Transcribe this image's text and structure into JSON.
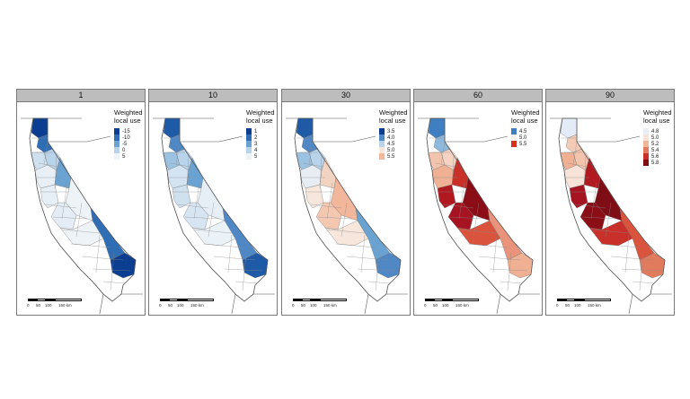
{
  "figure": {
    "panels": [
      {
        "label": "1",
        "legend": {
          "title": "Weighted local use",
          "ticks": [
            "-15",
            "-10",
            "-5",
            "0",
            "5"
          ],
          "colors": [
            "#0b3d91",
            "#2f6db5",
            "#6aa3d1",
            "#b9d3ea",
            "#eef3f8"
          ]
        },
        "zone_colors": [
          "#0b3d91",
          "#2f6db5",
          "#cfe0ef",
          "#b9d3ea",
          "#e8eff6",
          "#6aa3d1",
          "#e6eef6",
          "#eef3f8",
          "#e4ecf5",
          "#eef3f8",
          "#2f6db5",
          "#0b3d91"
        ]
      },
      {
        "label": "10",
        "legend": {
          "title": "Weighted local use",
          "ticks": [
            "1",
            "2",
            "3",
            "4",
            "5"
          ],
          "colors": [
            "#0b3d91",
            "#2f6db5",
            "#6aa3d1",
            "#b9d3ea",
            "#eef3f8"
          ]
        },
        "zone_colors": [
          "#1f5aa6",
          "#4f88c4",
          "#9cc2e2",
          "#b9d3ea",
          "#d4e3f1",
          "#6aa3d1",
          "#cfe0ef",
          "#e6eef6",
          "#d7e5f2",
          "#eaf1f7",
          "#4f88c4",
          "#1f5aa6"
        ]
      },
      {
        "label": "30",
        "legend": {
          "title": "Weighted local use",
          "ticks": [
            "3.5",
            "4.0",
            "4.5",
            "5.0",
            "5.5"
          ],
          "colors": [
            "#0b3d91",
            "#4f88c4",
            "#b9d3ea",
            "#f6e6dc",
            "#f2b79b"
          ]
        },
        "zone_colors": [
          "#1f5aa6",
          "#4f88c4",
          "#9cc2e2",
          "#b9d3ea",
          "#e7edf3",
          "#f2d3c2",
          "#f6e6dc",
          "#f2b79b",
          "#f4c7b0",
          "#f6e6dc",
          "#6aa3d1",
          "#4f88c4"
        ]
      },
      {
        "label": "60",
        "legend": {
          "title": "Weighted local use",
          "ticks": [
            "4.5",
            "5.0",
            "5.5"
          ],
          "colors": [
            "#3f7ec0",
            "#f7f2ee",
            "#d7301f"
          ]
        },
        "zone_colors": [
          "#3f7ec0",
          "#8fb8dd",
          "#f2c4ad",
          "#f4d3c2",
          "#f0b093",
          "#c9302a",
          "#b0191f",
          "#8b0d16",
          "#a51420",
          "#d9533d",
          "#e9937a",
          "#f0b093"
        ]
      },
      {
        "label": "90",
        "legend": {
          "title": "Weighted local use",
          "ticks": [
            "4.8",
            "5.0",
            "5.2",
            "5.4",
            "5.6",
            "5.8"
          ],
          "colors": [
            "#e9eef6",
            "#f7e3d8",
            "#f2b79b",
            "#e07b5e",
            "#c9302a",
            "#7f0d16"
          ]
        },
        "zone_colors": [
          "#e3ecf6",
          "#f4cbb6",
          "#f0b093",
          "#f2c4ad",
          "#f7e3d8",
          "#b0191f",
          "#a51420",
          "#7f0d16",
          "#8b0d16",
          "#c9302a",
          "#d9533d",
          "#e07b5e"
        ]
      }
    ],
    "scale_labels": [
      "0",
      "50",
      "100",
      "150 km"
    ],
    "colors": {
      "border": "#555555",
      "frame": "#7a7a7a",
      "strip": "#bdbdbd"
    }
  }
}
